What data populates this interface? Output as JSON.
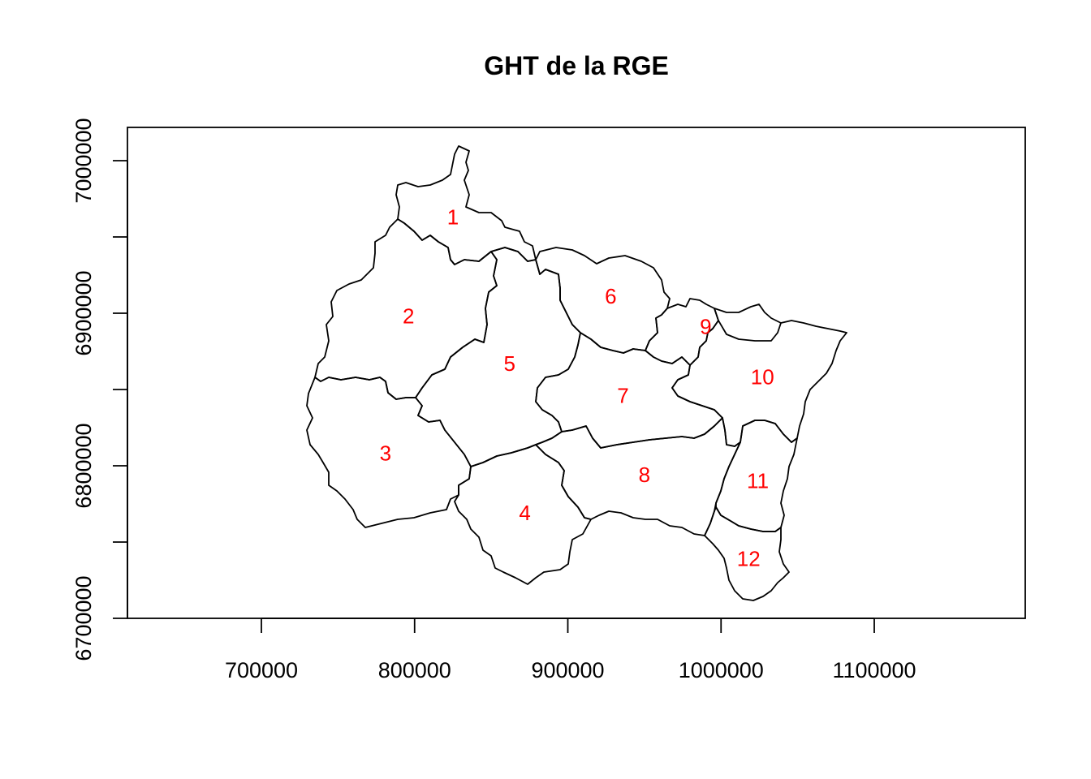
{
  "title": "GHT de la RGE",
  "label_color": "#ff0000",
  "x_axis": {
    "ticks": [
      700000,
      800000,
      900000,
      1000000,
      1100000
    ],
    "labels": [
      "700000",
      "800000",
      "900000",
      "1000000",
      "1100000"
    ],
    "range": [
      612000,
      1200000
    ]
  },
  "y_axis": {
    "ticks": [
      6700000,
      6800000,
      6900000,
      7000000
    ],
    "labels": [
      "6700000",
      "6800000",
      "6900000",
      "7000000"
    ],
    "minor_ticks": [
      6750000,
      6850000,
      6950000
    ],
    "range": [
      6700000,
      7022000
    ]
  },
  "regions": [
    {
      "id": "1",
      "label": "1",
      "label_x": 825000,
      "label_y": 6962000
    },
    {
      "id": "2",
      "label": "2",
      "label_x": 796000,
      "label_y": 6897000
    },
    {
      "id": "3",
      "label": "3",
      "label_x": 781000,
      "label_y": 6807000
    },
    {
      "id": "4",
      "label": "4",
      "label_x": 872000,
      "label_y": 6768000
    },
    {
      "id": "5",
      "label": "5",
      "label_x": 862000,
      "label_y": 6866000
    },
    {
      "id": "6",
      "label": "6",
      "label_x": 928000,
      "label_y": 6910000
    },
    {
      "id": "7",
      "label": "7",
      "label_x": 936000,
      "label_y": 6845000
    },
    {
      "id": "8",
      "label": "8",
      "label_x": 950000,
      "label_y": 6793000
    },
    {
      "id": "9",
      "label": "9",
      "label_x": 990000,
      "label_y": 6890000
    },
    {
      "id": "10",
      "label": "10",
      "label_x": 1027000,
      "label_y": 6857000
    },
    {
      "id": "11",
      "label": "11",
      "label_x": 1024000,
      "label_y": 6789000
    },
    {
      "id": "12",
      "label": "12",
      "label_x": 1018000,
      "label_y": 6738000
    }
  ]
}
